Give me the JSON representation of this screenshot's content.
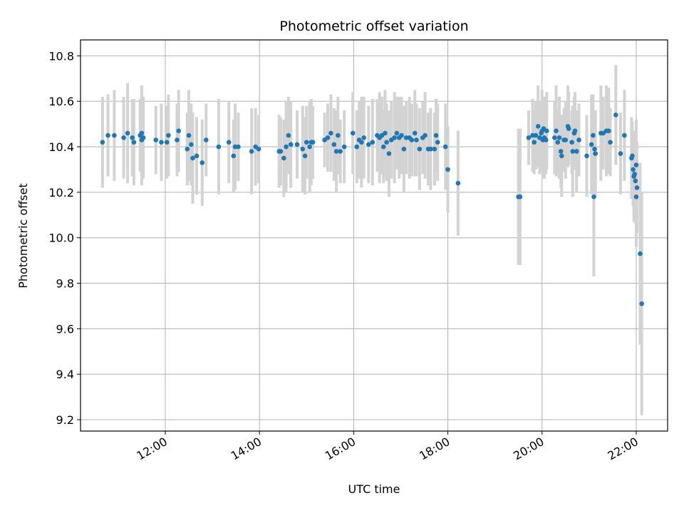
{
  "chart_data": {
    "type": "scatter",
    "title": "Photometric offset variation",
    "xlabel": "UTC time",
    "ylabel": "Photometric offset",
    "xlim": [
      "10:12",
      "22:40"
    ],
    "ylim": [
      9.15,
      10.87
    ],
    "xticks": [
      "12:00",
      "14:00",
      "16:00",
      "18:00",
      "20:00",
      "22:00"
    ],
    "yticks": [
      9.2,
      9.4,
      9.6,
      9.8,
      10.0,
      10.2,
      10.4,
      10.6,
      10.8
    ],
    "ytick_labels": [
      "9.2",
      "9.4",
      "9.6",
      "9.8",
      "10.0",
      "10.2",
      "10.4",
      "10.6",
      "10.8"
    ],
    "grid": true,
    "colors": {
      "point": "#1f77b4",
      "errorbar": "#d3d3d3",
      "grid": "#b0b0b0"
    },
    "points": [
      {
        "x": "10:40",
        "y": 10.42,
        "err": 0.2
      },
      {
        "x": "10:47",
        "y": 10.45,
        "err": 0.18
      },
      {
        "x": "10:55",
        "y": 10.45,
        "err": 0.2
      },
      {
        "x": "11:07",
        "y": 10.44,
        "err": 0.18
      },
      {
        "x": "11:12",
        "y": 10.46,
        "err": 0.22
      },
      {
        "x": "11:18",
        "y": 10.44,
        "err": 0.17
      },
      {
        "x": "11:20",
        "y": 10.42,
        "err": 0.19
      },
      {
        "x": "11:28",
        "y": 10.45,
        "err": 0.16
      },
      {
        "x": "11:30",
        "y": 10.46,
        "err": 0.21
      },
      {
        "x": "11:30",
        "y": 10.43,
        "err": 0.2
      },
      {
        "x": "11:32",
        "y": 10.44,
        "err": 0.18
      },
      {
        "x": "11:48",
        "y": 10.43,
        "err": 0.15
      },
      {
        "x": "11:55",
        "y": 10.42,
        "err": 0.17
      },
      {
        "x": "12:02",
        "y": 10.42,
        "err": 0.16
      },
      {
        "x": "12:04",
        "y": 10.45,
        "err": 0.18
      },
      {
        "x": "12:15",
        "y": 10.43,
        "err": 0.16
      },
      {
        "x": "12:17",
        "y": 10.47,
        "err": 0.18
      },
      {
        "x": "12:28",
        "y": 10.39,
        "err": 0.16
      },
      {
        "x": "12:30",
        "y": 10.45,
        "err": 0.2
      },
      {
        "x": "12:33",
        "y": 10.41,
        "err": 0.18
      },
      {
        "x": "12:35",
        "y": 10.35,
        "err": 0.2
      },
      {
        "x": "12:40",
        "y": 10.36,
        "err": 0.17
      },
      {
        "x": "12:47",
        "y": 10.33,
        "err": 0.19
      },
      {
        "x": "12:52",
        "y": 10.43,
        "err": 0.16
      },
      {
        "x": "13:08",
        "y": 10.4,
        "err": 0.21
      },
      {
        "x": "13:21",
        "y": 10.42,
        "err": 0.18
      },
      {
        "x": "13:27",
        "y": 10.36,
        "err": 0.16
      },
      {
        "x": "13:29",
        "y": 10.4,
        "err": 0.19
      },
      {
        "x": "13:33",
        "y": 10.4,
        "err": 0.15
      },
      {
        "x": "13:50",
        "y": 10.38,
        "err": 0.19
      },
      {
        "x": "13:55",
        "y": 10.4,
        "err": 0.17
      },
      {
        "x": "13:59",
        "y": 10.39,
        "err": 0.15
      },
      {
        "x": "14:25",
        "y": 10.38,
        "err": 0.16
      },
      {
        "x": "14:27",
        "y": 10.38,
        "err": 0.15
      },
      {
        "x": "14:31",
        "y": 10.35,
        "err": 0.17
      },
      {
        "x": "14:34",
        "y": 10.4,
        "err": 0.2
      },
      {
        "x": "14:37",
        "y": 10.45,
        "err": 0.17
      },
      {
        "x": "14:40",
        "y": 10.41,
        "err": 0.19
      },
      {
        "x": "14:48",
        "y": 10.41,
        "err": 0.15
      },
      {
        "x": "14:55",
        "y": 10.39,
        "err": 0.19
      },
      {
        "x": "14:58",
        "y": 10.36,
        "err": 0.17
      },
      {
        "x": "15:00",
        "y": 10.42,
        "err": 0.16
      },
      {
        "x": "15:04",
        "y": 10.4,
        "err": 0.2
      },
      {
        "x": "15:06",
        "y": 10.42,
        "err": 0.19
      },
      {
        "x": "15:08",
        "y": 10.42,
        "err": 0.16
      },
      {
        "x": "15:23",
        "y": 10.43,
        "err": 0.12
      },
      {
        "x": "15:27",
        "y": 10.44,
        "err": 0.15
      },
      {
        "x": "15:31",
        "y": 10.46,
        "err": 0.17
      },
      {
        "x": "15:35",
        "y": 10.41,
        "err": 0.16
      },
      {
        "x": "15:38",
        "y": 10.38,
        "err": 0.18
      },
      {
        "x": "15:40",
        "y": 10.45,
        "err": 0.17
      },
      {
        "x": "15:43",
        "y": 10.38,
        "err": 0.14
      },
      {
        "x": "15:48",
        "y": 10.4,
        "err": 0.16
      },
      {
        "x": "15:59",
        "y": 10.46,
        "err": 0.18
      },
      {
        "x": "16:04",
        "y": 10.4,
        "err": 0.16
      },
      {
        "x": "16:07",
        "y": 10.43,
        "err": 0.17
      },
      {
        "x": "16:10",
        "y": 10.42,
        "err": 0.2
      },
      {
        "x": "16:13",
        "y": 10.44,
        "err": 0.18
      },
      {
        "x": "16:19",
        "y": 10.41,
        "err": 0.17
      },
      {
        "x": "16:24",
        "y": 10.42,
        "err": 0.19
      },
      {
        "x": "16:30",
        "y": 10.45,
        "err": 0.16
      },
      {
        "x": "16:33",
        "y": 10.44,
        "err": 0.2
      },
      {
        "x": "16:36",
        "y": 10.45,
        "err": 0.17
      },
      {
        "x": "16:38",
        "y": 10.4,
        "err": 0.16
      },
      {
        "x": "16:40",
        "y": 10.46,
        "err": 0.19
      },
      {
        "x": "16:42",
        "y": 10.42,
        "err": 0.17
      },
      {
        "x": "16:45",
        "y": 10.37,
        "err": 0.19
      },
      {
        "x": "16:48",
        "y": 10.43,
        "err": 0.17
      },
      {
        "x": "16:52",
        "y": 10.44,
        "err": 0.2
      },
      {
        "x": "16:55",
        "y": 10.46,
        "err": 0.16
      },
      {
        "x": "16:58",
        "y": 10.44,
        "err": 0.18
      },
      {
        "x": "17:01",
        "y": 10.45,
        "err": 0.17
      },
      {
        "x": "17:04",
        "y": 10.39,
        "err": 0.19
      },
      {
        "x": "17:07",
        "y": 10.44,
        "err": 0.16
      },
      {
        "x": "17:11",
        "y": 10.44,
        "err": 0.18
      },
      {
        "x": "17:14",
        "y": 10.43,
        "err": 0.16
      },
      {
        "x": "17:18",
        "y": 10.46,
        "err": 0.19
      },
      {
        "x": "17:20",
        "y": 10.43,
        "err": 0.16
      },
      {
        "x": "17:24",
        "y": 10.39,
        "err": 0.18
      },
      {
        "x": "17:28",
        "y": 10.44,
        "err": 0.16
      },
      {
        "x": "17:31",
        "y": 10.45,
        "err": 0.19
      },
      {
        "x": "17:35",
        "y": 10.39,
        "err": 0.16
      },
      {
        "x": "17:38",
        "y": 10.39,
        "err": 0.18
      },
      {
        "x": "17:43",
        "y": 10.39,
        "err": 0.16
      },
      {
        "x": "17:45",
        "y": 10.45,
        "err": 0.16
      },
      {
        "x": "17:47",
        "y": 10.42,
        "err": 0.17
      },
      {
        "x": "17:57",
        "y": 10.4,
        "err": 0.19
      },
      {
        "x": "18:00",
        "y": 10.3,
        "err": 0.19
      },
      {
        "x": "18:13",
        "y": 10.24,
        "err": 0.23
      },
      {
        "x": "19:30",
        "y": 10.18,
        "err": 0.3
      },
      {
        "x": "19:32",
        "y": 10.18,
        "err": 0.3
      },
      {
        "x": "19:43",
        "y": 10.44,
        "err": 0.12
      },
      {
        "x": "19:48",
        "y": 10.45,
        "err": 0.16
      },
      {
        "x": "19:50",
        "y": 10.42,
        "err": 0.14
      },
      {
        "x": "19:52",
        "y": 10.45,
        "err": 0.15
      },
      {
        "x": "19:55",
        "y": 10.49,
        "err": 0.18
      },
      {
        "x": "19:57",
        "y": 10.44,
        "err": 0.16
      },
      {
        "x": "19:59",
        "y": 10.46,
        "err": 0.13
      },
      {
        "x": "20:00",
        "y": 10.47,
        "err": 0.18
      },
      {
        "x": "20:01",
        "y": 10.43,
        "err": 0.17
      },
      {
        "x": "20:02",
        "y": 10.48,
        "err": 0.14
      },
      {
        "x": "20:03",
        "y": 10.44,
        "err": 0.18
      },
      {
        "x": "20:05",
        "y": 10.43,
        "err": 0.15
      },
      {
        "x": "20:06",
        "y": 10.47,
        "err": 0.17
      },
      {
        "x": "20:16",
        "y": 10.44,
        "err": 0.16
      },
      {
        "x": "20:18",
        "y": 10.47,
        "err": 0.2
      },
      {
        "x": "20:20",
        "y": 10.42,
        "err": 0.14
      },
      {
        "x": "20:22",
        "y": 10.44,
        "err": 0.18
      },
      {
        "x": "20:24",
        "y": 10.38,
        "err": 0.16
      },
      {
        "x": "20:25",
        "y": 10.36,
        "err": 0.18
      },
      {
        "x": "20:28",
        "y": 10.43,
        "err": 0.14
      },
      {
        "x": "20:30",
        "y": 10.43,
        "err": 0.17
      },
      {
        "x": "20:33",
        "y": 10.49,
        "err": 0.18
      },
      {
        "x": "20:34",
        "y": 10.48,
        "err": 0.16
      },
      {
        "x": "20:38",
        "y": 10.42,
        "err": 0.14
      },
      {
        "x": "20:39",
        "y": 10.38,
        "err": 0.2
      },
      {
        "x": "20:41",
        "y": 10.46,
        "err": 0.16
      },
      {
        "x": "20:42",
        "y": 10.47,
        "err": 0.17
      },
      {
        "x": "20:44",
        "y": 10.38,
        "err": 0.18
      },
      {
        "x": "20:47",
        "y": 10.43,
        "err": 0.16
      },
      {
        "x": "20:57",
        "y": 10.36,
        "err": 0.18
      },
      {
        "x": "21:03",
        "y": 10.41,
        "err": 0.22
      },
      {
        "x": "21:05",
        "y": 10.45,
        "err": 0.18
      },
      {
        "x": "21:06",
        "y": 10.18,
        "err": 0.35
      },
      {
        "x": "21:07",
        "y": 10.39,
        "err": 0.16
      },
      {
        "x": "21:08",
        "y": 10.37,
        "err": 0.19
      },
      {
        "x": "21:15",
        "y": 10.46,
        "err": 0.21
      },
      {
        "x": "21:18",
        "y": 10.46,
        "err": 0.16
      },
      {
        "x": "21:22",
        "y": 10.47,
        "err": 0.2
      },
      {
        "x": "21:25",
        "y": 10.47,
        "err": 0.19
      },
      {
        "x": "21:27",
        "y": 10.42,
        "err": 0.15
      },
      {
        "x": "21:34",
        "y": 10.54,
        "err": 0.22
      },
      {
        "x": "21:40",
        "y": 10.37,
        "err": 0.18
      },
      {
        "x": "21:45",
        "y": 10.45,
        "err": 0.2
      },
      {
        "x": "21:54",
        "y": 10.35,
        "err": 0.18
      },
      {
        "x": "21:55",
        "y": 10.36,
        "err": 0.15
      },
      {
        "x": "21:56",
        "y": 10.3,
        "err": 0.16
      },
      {
        "x": "21:57",
        "y": 10.27,
        "err": 0.2
      },
      {
        "x": "21:58",
        "y": 10.28,
        "err": 0.17
      },
      {
        "x": "21:59",
        "y": 10.25,
        "err": 0.19
      },
      {
        "x": "22:00",
        "y": 10.32,
        "err": 0.2
      },
      {
        "x": "22:01",
        "y": 10.22,
        "err": 0.2
      },
      {
        "x": "22:00",
        "y": 10.18,
        "err": 0.22
      },
      {
        "x": "22:05",
        "y": 9.93,
        "err": 0.4
      },
      {
        "x": "22:07",
        "y": 9.71,
        "err": 0.49
      }
    ]
  }
}
